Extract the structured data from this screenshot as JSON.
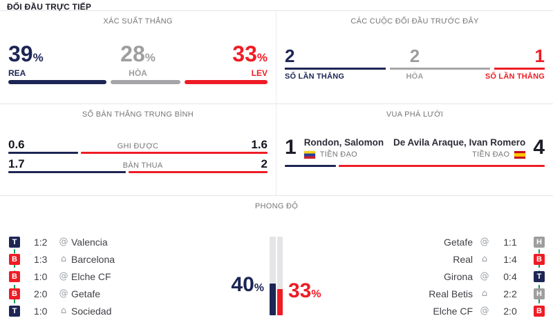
{
  "percent_sign": "%",
  "header": {
    "title": "ĐỐI ĐẦU TRỰC TIẾP"
  },
  "win_probability": {
    "title": "XÁC SUẤT THẮNG",
    "home": {
      "value": "39",
      "label": "REA",
      "weight": 39
    },
    "draw": {
      "value": "28",
      "label": "HÒA",
      "weight": 28
    },
    "away": {
      "value": "33",
      "label": "LEV",
      "weight": 33
    }
  },
  "previous_meetings": {
    "title": "CÁC CUỘC ĐỐI ĐẦU TRƯỚC ĐÂY",
    "home": {
      "value": "2",
      "label": "SỐ LẦN THẮNG",
      "weight": 2
    },
    "draw": {
      "value": "2",
      "label": "HÒA",
      "weight": 2
    },
    "away": {
      "value": "1",
      "label": "SỐ LẦN THẮNG",
      "weight": 1
    }
  },
  "average_goals": {
    "title": "SỐ BÀN THẮNG TRUNG BÌNH",
    "scored": {
      "home": "0.6",
      "label": "GHI ĐƯỢC",
      "away": "1.6",
      "home_weight": 0.6,
      "away_weight": 1.6
    },
    "conceded": {
      "home": "1.7",
      "label": "BÀN THUA",
      "away": "2",
      "home_weight": 1.7,
      "away_weight": 2
    }
  },
  "top_scorers": {
    "title": "VUA PHÁ LƯỚI",
    "home": {
      "goals": "1",
      "name": "Rondon, Salomon",
      "position": "TIỀN ĐẠO",
      "flag": "venezuela",
      "weight": 1
    },
    "away": {
      "goals": "4",
      "name": "De Avila Araque, Ivan Romero",
      "position": "TIỀN ĐẠO",
      "flag": "spain",
      "weight": 4
    }
  },
  "form": {
    "title": "PHONG ĐỘ",
    "home_percent": "40",
    "away_percent": "33",
    "home_bar_pct": 40,
    "away_bar_pct": 33,
    "home_matches": [
      {
        "result": "T",
        "score": "1:2",
        "venue_glyph": "@",
        "team": "Valencia"
      },
      {
        "result": "B",
        "score": "1:3",
        "venue_glyph": "⌂",
        "team": "Barcelona"
      },
      {
        "result": "B",
        "score": "1:0",
        "venue_glyph": "@",
        "team": "Elche CF"
      },
      {
        "result": "B",
        "score": "2:0",
        "venue_glyph": "@",
        "team": "Getafe"
      },
      {
        "result": "T",
        "score": "1:0",
        "venue_glyph": "⌂",
        "team": "Sociedad"
      }
    ],
    "away_matches": [
      {
        "result": "H",
        "score": "1:1",
        "venue_glyph": "@",
        "team": "Getafe"
      },
      {
        "result": "B",
        "score": "1:4",
        "venue_glyph": "⌂",
        "team": "Real"
      },
      {
        "result": "T",
        "score": "0:4",
        "venue_glyph": "@",
        "team": "Girona"
      },
      {
        "result": "H",
        "score": "2:2",
        "venue_glyph": "⌂",
        "team": "Real Betis"
      },
      {
        "result": "B",
        "score": "2:0",
        "venue_glyph": "@",
        "team": "Elche CF"
      }
    ]
  },
  "colors": {
    "home_navy": "#1c2554",
    "away_red": "#ee1c25",
    "draw_gray": "#9e9e9e",
    "connector_green": "#0f9d58"
  }
}
